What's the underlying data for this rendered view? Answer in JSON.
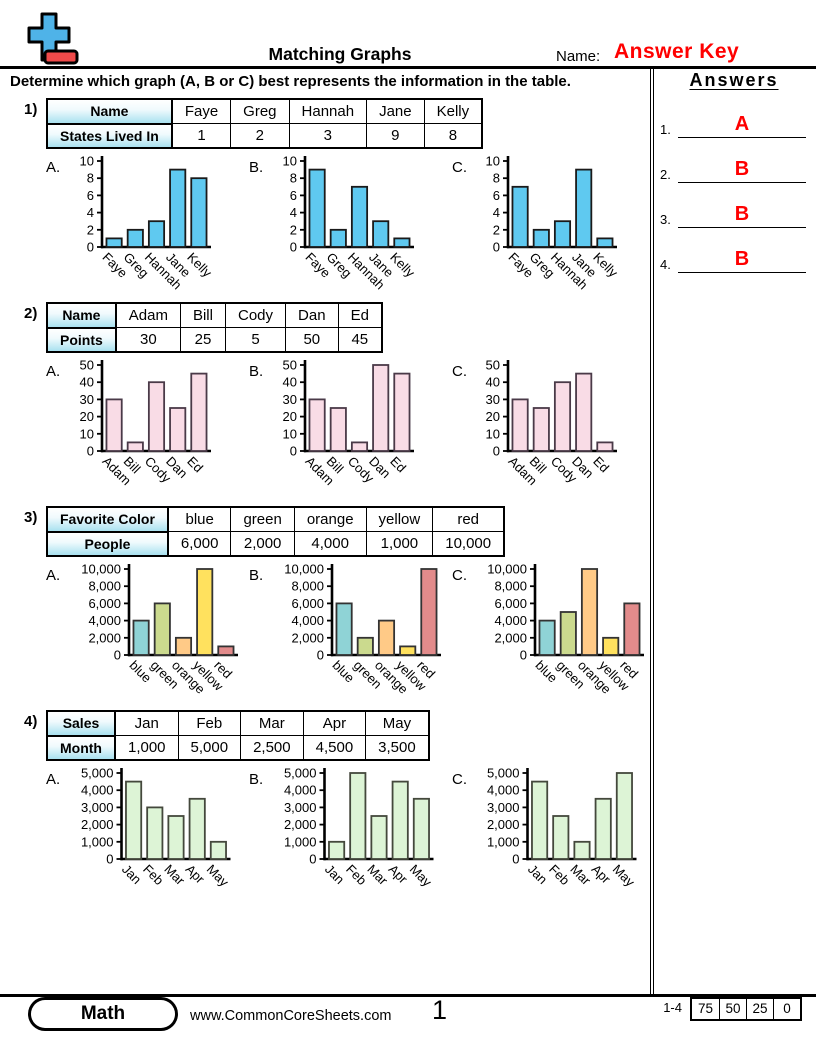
{
  "header": {
    "title": "Matching Graphs",
    "name_label": "Name:",
    "name_value": "Answer Key",
    "instruction": "Determine which graph (A, B or C) best represents the information in the table."
  },
  "answers_panel": {
    "heading": "Answers",
    "items": [
      {
        "num": "1.",
        "value": "A"
      },
      {
        "num": "2.",
        "value": "B"
      },
      {
        "num": "3.",
        "value": "B"
      },
      {
        "num": "4.",
        "value": "B"
      }
    ]
  },
  "problems": [
    {
      "number": "1)",
      "table": {
        "row1_header": "Name",
        "row1_cells": [
          "Faye",
          "Greg",
          "Hannah",
          "Jane",
          "Kelly"
        ],
        "row2_header": "States Lived In",
        "row2_cells": [
          "1",
          "2",
          "3",
          "9",
          "8"
        ]
      }
    },
    {
      "number": "2)",
      "table": {
        "row1_header": "Name",
        "row1_cells": [
          "Adam",
          "Bill",
          "Cody",
          "Dan",
          "Ed"
        ],
        "row2_header": "Points",
        "row2_cells": [
          "30",
          "25",
          "5",
          "50",
          "45"
        ]
      }
    },
    {
      "number": "3)",
      "table": {
        "row1_header": "Favorite Color",
        "row1_cells": [
          "blue",
          "green",
          "orange",
          "yellow",
          "red"
        ],
        "row2_header": "People",
        "row2_cells": [
          "6,000",
          "2,000",
          "4,000",
          "1,000",
          "10,000"
        ]
      }
    },
    {
      "number": "4)",
      "table": {
        "row1_header": "Sales",
        "row1_cells": [
          "Jan",
          "Feb",
          "Mar",
          "Apr",
          "May"
        ],
        "row2_header": "Month",
        "row2_cells": [
          "1,000",
          "5,000",
          "2,500",
          "4,500",
          "3,500"
        ]
      }
    }
  ],
  "chart_data": [
    {
      "problem": 1,
      "label": "A.",
      "type": "bar",
      "categories": [
        "Faye",
        "Greg",
        "Hannah",
        "Jane",
        "Kelly"
      ],
      "values": [
        1,
        2,
        3,
        9,
        8
      ],
      "ylim": [
        0,
        10
      ],
      "ytick": 2,
      "bar_fill": "#5fc9f0",
      "bar_stroke": "#1a1a1a"
    },
    {
      "problem": 1,
      "label": "B.",
      "type": "bar",
      "categories": [
        "Faye",
        "Greg",
        "Hannah",
        "Jane",
        "Kelly"
      ],
      "values": [
        9,
        2,
        7,
        3,
        1
      ],
      "ylim": [
        0,
        10
      ],
      "ytick": 2,
      "bar_fill": "#5fc9f0",
      "bar_stroke": "#1a1a1a"
    },
    {
      "problem": 1,
      "label": "C.",
      "type": "bar",
      "categories": [
        "Faye",
        "Greg",
        "Hannah",
        "Jane",
        "Kelly"
      ],
      "values": [
        7,
        2,
        3,
        9,
        1
      ],
      "ylim": [
        0,
        10
      ],
      "ytick": 2,
      "bar_fill": "#5fc9f0",
      "bar_stroke": "#1a1a1a"
    },
    {
      "problem": 2,
      "label": "A.",
      "type": "bar",
      "categories": [
        "Adam",
        "Bill",
        "Cody",
        "Dan",
        "Ed"
      ],
      "values": [
        30,
        5,
        40,
        25,
        45
      ],
      "ylim": [
        0,
        50
      ],
      "ytick": 10,
      "bar_fill": "#f9dce6",
      "bar_stroke": "#4a3a48"
    },
    {
      "problem": 2,
      "label": "B.",
      "type": "bar",
      "categories": [
        "Adam",
        "Bill",
        "Cody",
        "Dan",
        "Ed"
      ],
      "values": [
        30,
        25,
        5,
        50,
        45
      ],
      "ylim": [
        0,
        50
      ],
      "ytick": 10,
      "bar_fill": "#f9dce6",
      "bar_stroke": "#4a3a48"
    },
    {
      "problem": 2,
      "label": "C.",
      "type": "bar",
      "categories": [
        "Adam",
        "Bill",
        "Cody",
        "Dan",
        "Ed"
      ],
      "values": [
        30,
        25,
        40,
        45,
        5
      ],
      "ylim": [
        0,
        50
      ],
      "ytick": 10,
      "bar_fill": "#f9dce6",
      "bar_stroke": "#4a3a48"
    },
    {
      "problem": 3,
      "label": "A.",
      "type": "bar",
      "categories": [
        "blue",
        "green",
        "orange",
        "yellow",
        "red"
      ],
      "values": [
        4000,
        6000,
        2000,
        10000,
        1000
      ],
      "ylim": [
        0,
        10000
      ],
      "ytick": 2000,
      "bar_fill": [
        "#8fd3d6",
        "#cbda8e",
        "#ffca87",
        "#ffe15e",
        "#e28b8b"
      ],
      "bar_stroke": "#333333"
    },
    {
      "problem": 3,
      "label": "B.",
      "type": "bar",
      "categories": [
        "blue",
        "green",
        "orange",
        "yellow",
        "red"
      ],
      "values": [
        6000,
        2000,
        4000,
        1000,
        10000
      ],
      "ylim": [
        0,
        10000
      ],
      "ytick": 2000,
      "bar_fill": [
        "#8fd3d6",
        "#cbda8e",
        "#ffca87",
        "#ffe15e",
        "#e28b8b"
      ],
      "bar_stroke": "#333333"
    },
    {
      "problem": 3,
      "label": "C.",
      "type": "bar",
      "categories": [
        "blue",
        "green",
        "orange",
        "yellow",
        "red"
      ],
      "values": [
        4000,
        5000,
        10000,
        2000,
        6000
      ],
      "ylim": [
        0,
        10000
      ],
      "ytick": 2000,
      "bar_fill": [
        "#8fd3d6",
        "#cbda8e",
        "#ffca87",
        "#ffe15e",
        "#e28b8b"
      ],
      "bar_stroke": "#333333"
    },
    {
      "problem": 4,
      "label": "A.",
      "type": "bar",
      "categories": [
        "Jan",
        "Feb",
        "Mar",
        "Apr",
        "May"
      ],
      "values": [
        4500,
        3000,
        2500,
        3500,
        1000
      ],
      "ylim": [
        0,
        5000
      ],
      "ytick": 1000,
      "bar_fill": "#ddf4d6",
      "bar_stroke": "#44483c"
    },
    {
      "problem": 4,
      "label": "B.",
      "type": "bar",
      "categories": [
        "Jan",
        "Feb",
        "Mar",
        "Apr",
        "May"
      ],
      "values": [
        1000,
        5000,
        2500,
        4500,
        3500
      ],
      "ylim": [
        0,
        5000
      ],
      "ytick": 1000,
      "bar_fill": "#ddf4d6",
      "bar_stroke": "#44483c"
    },
    {
      "problem": 4,
      "label": "C.",
      "type": "bar",
      "categories": [
        "Jan",
        "Feb",
        "Mar",
        "Apr",
        "May"
      ],
      "values": [
        4500,
        2500,
        1000,
        3500,
        5000
      ],
      "ylim": [
        0,
        5000
      ],
      "ytick": 1000,
      "bar_fill": "#ddf4d6",
      "bar_stroke": "#44483c"
    }
  ],
  "footer": {
    "subject": "Math",
    "website": "www.CommonCoreSheets.com",
    "page_number": "1",
    "score_label": "1-4",
    "score_values": [
      "75",
      "50",
      "25",
      "0"
    ]
  },
  "colors": {
    "answer_red": "#ff0000",
    "logo_blue": "#4fb3e8",
    "logo_red": "#f04a4a",
    "table_header_blue": "#a9e1f0"
  }
}
